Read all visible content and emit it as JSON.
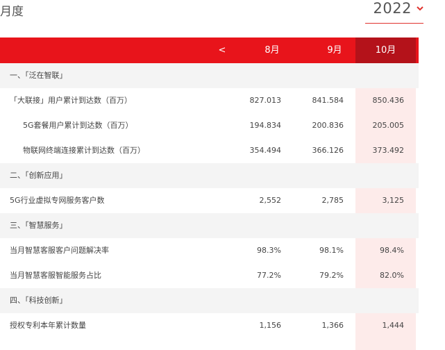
{
  "header": {
    "title": "月度",
    "year": "2022"
  },
  "table": {
    "prev_label": "<",
    "months": [
      "8月",
      "9月",
      "10月"
    ],
    "rows": [
      {
        "label": "一、「泛在智联」",
        "values": []
      },
      {
        "label": "「大联接」用户累计到达数（百万）",
        "values": [
          "827.013",
          "841.584",
          "850.436"
        ]
      },
      {
        "label": "5G套餐用户累计到达数（百万）",
        "values": [
          "194.834",
          "200.836",
          "205.005"
        ]
      },
      {
        "label": "物联网终端连接累计到达数（百万）",
        "values": [
          "354.494",
          "366.126",
          "373.492"
        ]
      },
      {
        "label": "二、「创新应用」",
        "values": []
      },
      {
        "label": "5G行业虚拟专网服务客户数",
        "values": [
          "2,552",
          "2,785",
          "3,125"
        ]
      },
      {
        "label": "三、「智慧服务」",
        "values": []
      },
      {
        "label": "当月智慧客服客户问题解决率",
        "values": [
          "98.3%",
          "98.1%",
          "98.4%"
        ]
      },
      {
        "label": "当月智慧客服智能服务占比",
        "values": [
          "77.2%",
          "79.2%",
          "82.0%"
        ]
      },
      {
        "label": "四、「科技创新」",
        "values": []
      },
      {
        "label": "授权专利本年累计数量",
        "values": [
          "1,156",
          "1,366",
          "1,444"
        ]
      }
    ]
  },
  "colors": {
    "accent": "#e8141b",
    "accent_dark": "#b4121a",
    "section_bg": "#f4f4f4",
    "highlight_col": "#fbe4e2"
  }
}
